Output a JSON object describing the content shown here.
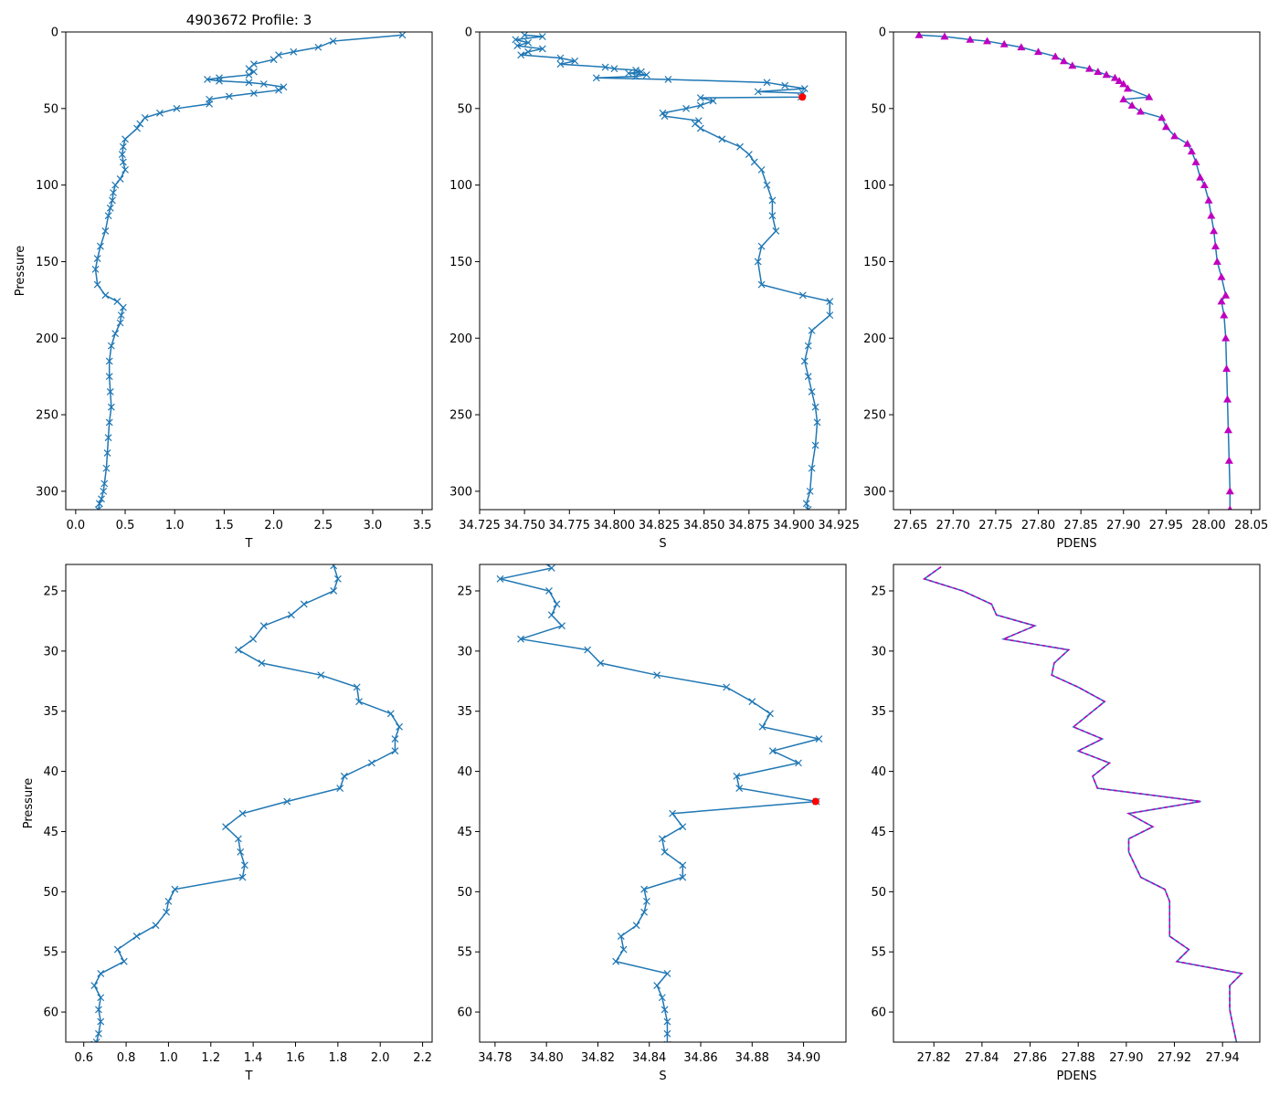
{
  "figure_title": "4903672 Profile: 3",
  "colors": {
    "series": "#1f77b4",
    "pdens": "#bf00bf",
    "flag": "#ff0000"
  },
  "chart_data": [
    {
      "id": "top-t",
      "type": "line",
      "title": "4903672 Profile: 3",
      "xlabel": "T",
      "ylabel": "Pressure",
      "xlim": [
        -0.1,
        3.6
      ],
      "ylim": [
        312,
        0
      ],
      "y_inverted": true,
      "xticks": [
        0.0,
        0.5,
        1.0,
        1.5,
        2.0,
        2.5,
        3.0,
        3.5
      ],
      "xtick_labels": [
        "0.0",
        "0.5",
        "1.0",
        "1.5",
        "2.0",
        "2.5",
        "3.0",
        "3.5"
      ],
      "yticks": [
        0,
        50,
        100,
        150,
        200,
        250,
        300
      ],
      "ytick_labels": [
        "0",
        "50",
        "100",
        "150",
        "200",
        "250",
        "300"
      ],
      "marker": "x",
      "color": "#1f77b4",
      "series": [
        {
          "name": "T",
          "x": [
            3.3,
            2.6,
            2.45,
            2.2,
            2.05,
            2.0,
            1.8,
            1.75,
            1.8,
            1.75,
            1.45,
            1.33,
            1.45,
            1.75,
            1.9,
            2.1,
            2.05,
            1.8,
            1.55,
            1.35,
            1.35,
            1.02,
            0.85,
            0.7,
            0.65,
            0.62,
            0.5,
            0.48,
            0.47,
            0.48,
            0.5,
            0.45,
            0.4,
            0.38,
            0.37,
            0.35,
            0.33,
            0.3,
            0.25,
            0.22,
            0.2,
            0.22,
            0.3,
            0.42,
            0.48,
            0.46,
            0.45,
            0.4,
            0.36,
            0.34,
            0.34,
            0.35,
            0.36,
            0.34,
            0.33,
            0.32,
            0.31,
            0.29,
            0.28,
            0.26,
            0.24,
            0.23
          ],
          "y": [
            2,
            6,
            10,
            13,
            15,
            18,
            21,
            24,
            26,
            28,
            30,
            31,
            32,
            33,
            34,
            36,
            38,
            40,
            42,
            44,
            47,
            50,
            53,
            56,
            60,
            63,
            70,
            75,
            80,
            85,
            90,
            96,
            100,
            105,
            110,
            115,
            120,
            130,
            140,
            148,
            155,
            165,
            172,
            176,
            180,
            185,
            190,
            197,
            205,
            215,
            225,
            235,
            245,
            255,
            265,
            275,
            285,
            295,
            300,
            305,
            308,
            312
          ]
        }
      ]
    },
    {
      "id": "top-s",
      "type": "line",
      "title": "",
      "xlabel": "S",
      "ylabel": "",
      "xlim": [
        34.725,
        34.929
      ],
      "ylim": [
        312,
        0
      ],
      "y_inverted": true,
      "xticks": [
        34.725,
        34.75,
        34.775,
        34.8,
        34.825,
        34.85,
        34.875,
        34.9,
        34.925
      ],
      "xtick_labels": [
        "34.725",
        "34.750",
        "34.775",
        "34.800",
        "34.825",
        "34.850",
        "34.875",
        "34.900",
        "34.925"
      ],
      "yticks": [
        0,
        50,
        100,
        150,
        200,
        250,
        300
      ],
      "ytick_labels": [
        "0",
        "50",
        "100",
        "150",
        "200",
        "250",
        "300"
      ],
      "marker": "x",
      "color": "#1f77b4",
      "series": [
        {
          "name": "S",
          "x": [
            34.75,
            34.76,
            34.745,
            34.752,
            34.746,
            34.76,
            34.752,
            34.748,
            34.77,
            34.778,
            34.77,
            34.795,
            34.8,
            34.812,
            34.815,
            34.808,
            34.818,
            34.812,
            34.79,
            34.83,
            34.885,
            34.895,
            34.906,
            34.88,
            34.905,
            34.904,
            34.848,
            34.855,
            34.848,
            34.84,
            34.827,
            34.828,
            34.847,
            34.845,
            34.848,
            34.86,
            34.87,
            34.875,
            34.878,
            34.882,
            34.885,
            34.888,
            34.888,
            34.89,
            34.882,
            34.88,
            34.882,
            34.905,
            34.92,
            34.92,
            34.91,
            34.908,
            34.906,
            34.908,
            34.91,
            34.912,
            34.913,
            34.912,
            34.91,
            34.909,
            34.907,
            34.908
          ],
          "y": [
            2,
            3,
            5,
            7,
            9,
            11,
            13,
            15,
            17,
            19,
            21,
            23,
            24,
            25,
            26,
            27,
            28,
            29,
            30,
            31,
            33,
            35,
            37,
            39,
            40,
            42.5,
            43,
            45,
            48,
            50,
            53,
            55,
            58,
            60,
            63,
            70,
            75,
            80,
            85,
            90,
            100,
            110,
            120,
            130,
            140,
            150,
            165,
            172,
            176,
            185,
            195,
            205,
            215,
            225,
            235,
            245,
            255,
            270,
            285,
            300,
            308,
            312
          ]
        }
      ],
      "flag_point": {
        "x": 34.9047,
        "y": 42.5,
        "color": "#ff0000"
      }
    },
    {
      "id": "top-pdens",
      "type": "line",
      "title": "",
      "xlabel": "PDENS",
      "ylabel": "",
      "xlim": [
        27.63,
        28.06
      ],
      "ylim": [
        312,
        0
      ],
      "y_inverted": true,
      "xticks": [
        27.65,
        27.7,
        27.75,
        27.8,
        27.85,
        27.9,
        27.95,
        28.0,
        28.05
      ],
      "xtick_labels": [
        "27.65",
        "27.70",
        "27.75",
        "27.80",
        "27.85",
        "27.90",
        "27.95",
        "28.00",
        "28.05"
      ],
      "yticks": [
        0,
        50,
        100,
        150,
        200,
        250,
        300
      ],
      "ytick_labels": [
        "0",
        "50",
        "100",
        "150",
        "200",
        "250",
        "300"
      ],
      "marker": "^",
      "color": "#bf00bf",
      "series": [
        {
          "name": "PDENS",
          "x": [
            27.66,
            27.69,
            27.72,
            27.74,
            27.76,
            27.78,
            27.8,
            27.82,
            27.83,
            27.84,
            27.86,
            27.87,
            27.88,
            27.89,
            27.895,
            27.9,
            27.905,
            27.93,
            27.9,
            27.91,
            27.92,
            27.945,
            27.95,
            27.96,
            27.975,
            27.98,
            27.985,
            27.99,
            27.995,
            28.0,
            28.003,
            28.006,
            28.008,
            28.01,
            28.015,
            28.02,
            28.015,
            28.018,
            28.02,
            28.021,
            28.022,
            28.023,
            28.024,
            28.025,
            28.025
          ],
          "y": [
            2,
            3,
            5,
            6,
            8,
            10,
            13,
            16,
            19,
            22,
            24,
            26,
            28,
            30,
            32,
            34,
            37,
            42.5,
            44,
            48,
            52,
            56,
            62,
            68,
            73,
            78,
            85,
            95,
            100,
            110,
            120,
            130,
            140,
            150,
            160,
            172,
            176,
            185,
            200,
            220,
            240,
            260,
            280,
            300,
            312
          ]
        }
      ]
    },
    {
      "id": "bottom-t",
      "type": "line",
      "title": "",
      "xlabel": "T",
      "ylabel": "Pressure",
      "xlim": [
        0.515,
        2.245
      ],
      "ylim": [
        62.5,
        22.8
      ],
      "y_inverted": true,
      "xticks": [
        0.6,
        0.8,
        1.0,
        1.2,
        1.4,
        1.6,
        1.8,
        2.0,
        2.2
      ],
      "xtick_labels": [
        "0.6",
        "0.8",
        "1.0",
        "1.2",
        "1.4",
        "1.6",
        "1.8",
        "2.0",
        "2.2"
      ],
      "yticks": [
        25,
        30,
        35,
        40,
        45,
        50,
        55,
        60
      ],
      "ytick_labels": [
        "25",
        "30",
        "35",
        "40",
        "45",
        "50",
        "55",
        "60"
      ],
      "marker": "x",
      "color": "#1f77b4",
      "series": [
        {
          "name": "T",
          "x": [
            1.78,
            1.8,
            1.78,
            1.64,
            1.58,
            1.45,
            1.4,
            1.33,
            1.44,
            1.72,
            1.89,
            1.9,
            2.05,
            2.09,
            2.07,
            2.07,
            1.96,
            1.83,
            1.81,
            1.56,
            1.35,
            1.27,
            1.33,
            1.34,
            1.36,
            1.35,
            1.03,
            1.0,
            0.99,
            0.94,
            0.85,
            0.76,
            0.79,
            0.68,
            0.65,
            0.68,
            0.67,
            0.68,
            0.67,
            0.66,
            0.65
          ],
          "y": [
            22.9,
            24.0,
            25.0,
            26.1,
            27.0,
            27.9,
            29.0,
            29.9,
            31.0,
            32.0,
            33.0,
            34.2,
            35.2,
            36.3,
            37.3,
            38.3,
            39.3,
            40.4,
            41.4,
            42.5,
            43.5,
            44.6,
            45.6,
            46.7,
            47.8,
            48.8,
            49.8,
            50.8,
            51.7,
            52.8,
            53.7,
            54.8,
            55.8,
            56.8,
            57.8,
            58.8,
            59.8,
            60.8,
            61.8,
            62.5,
            62.7
          ]
        }
      ]
    },
    {
      "id": "bottom-s",
      "type": "line",
      "title": "",
      "xlabel": "S",
      "ylabel": "",
      "xlim": [
        34.774,
        34.9165
      ],
      "ylim": [
        62.5,
        22.8
      ],
      "y_inverted": true,
      "xticks": [
        34.78,
        34.8,
        34.82,
        34.84,
        34.86,
        34.88,
        34.9
      ],
      "xtick_labels": [
        "34.78",
        "34.80",
        "34.82",
        "34.84",
        "34.86",
        "34.88",
        "34.90"
      ],
      "yticks": [
        25,
        30,
        35,
        40,
        45,
        50,
        55,
        60
      ],
      "ytick_labels": [
        "25",
        "30",
        "35",
        "40",
        "45",
        "50",
        "55",
        "60"
      ],
      "marker": "x",
      "color": "#1f77b4",
      "series": [
        {
          "name": "S",
          "x": [
            34.797,
            34.802,
            34.782,
            34.801,
            34.804,
            34.802,
            34.806,
            34.79,
            34.816,
            34.821,
            34.843,
            34.87,
            34.88,
            34.887,
            34.884,
            34.906,
            34.888,
            34.898,
            34.874,
            34.875,
            34.905,
            34.849,
            34.853,
            34.845,
            34.846,
            34.853,
            34.853,
            34.838,
            34.839,
            34.838,
            34.835,
            34.829,
            34.83,
            34.827,
            34.847,
            34.843,
            34.845,
            34.846,
            34.847,
            34.847,
            34.847
          ],
          "y": [
            22.3,
            23.1,
            24.0,
            25.0,
            26.1,
            27.0,
            27.9,
            29.0,
            29.9,
            31.0,
            32.0,
            33.0,
            34.2,
            35.2,
            36.3,
            37.3,
            38.3,
            39.3,
            40.4,
            41.4,
            42.5,
            43.5,
            44.6,
            45.6,
            46.7,
            47.8,
            48.8,
            49.8,
            50.8,
            51.7,
            52.8,
            53.7,
            54.8,
            55.8,
            56.8,
            57.8,
            58.8,
            59.8,
            60.8,
            61.8,
            62.7
          ]
        }
      ],
      "flag_point": {
        "x": 34.9047,
        "y": 42.5,
        "color": "#ff0000"
      }
    },
    {
      "id": "bottom-pdens",
      "type": "line",
      "title": "",
      "xlabel": "PDENS",
      "ylabel": "",
      "xlim": [
        27.8032,
        27.9555
      ],
      "ylim": [
        62.5,
        22.8
      ],
      "y_inverted": true,
      "xticks": [
        27.82,
        27.84,
        27.86,
        27.88,
        27.9,
        27.92,
        27.94
      ],
      "xtick_labels": [
        "27.82",
        "27.84",
        "27.86",
        "27.88",
        "27.90",
        "27.92",
        "27.94"
      ],
      "yticks": [
        25,
        30,
        35,
        40,
        45,
        50,
        55,
        60
      ],
      "ytick_labels": [
        "25",
        "30",
        "35",
        "40",
        "45",
        "50",
        "55",
        "60"
      ],
      "marker": "none",
      "color": "#bf00bf",
      "series": [
        {
          "name": "PDENS",
          "x": [
            27.823,
            27.816,
            27.832,
            27.844,
            27.846,
            27.862,
            27.849,
            27.876,
            27.87,
            27.869,
            27.88,
            27.891,
            27.878,
            27.89,
            27.88,
            27.893,
            27.886,
            27.888,
            27.931,
            27.901,
            27.911,
            27.901,
            27.901,
            27.906,
            27.916,
            27.918,
            27.918,
            27.918,
            27.926,
            27.921,
            27.948,
            27.943,
            27.943,
            27.943,
            27.944,
            27.946
          ],
          "y": [
            23.0,
            24.0,
            25.0,
            26.1,
            27.0,
            27.9,
            29.0,
            29.9,
            31.0,
            32.0,
            33.0,
            34.2,
            36.3,
            37.3,
            38.3,
            39.3,
            40.4,
            41.4,
            42.5,
            43.5,
            44.6,
            45.6,
            46.7,
            48.8,
            49.8,
            50.8,
            51.7,
            53.7,
            54.8,
            55.8,
            56.8,
            57.8,
            58.8,
            59.8,
            60.8,
            62.7
          ]
        }
      ]
    }
  ]
}
